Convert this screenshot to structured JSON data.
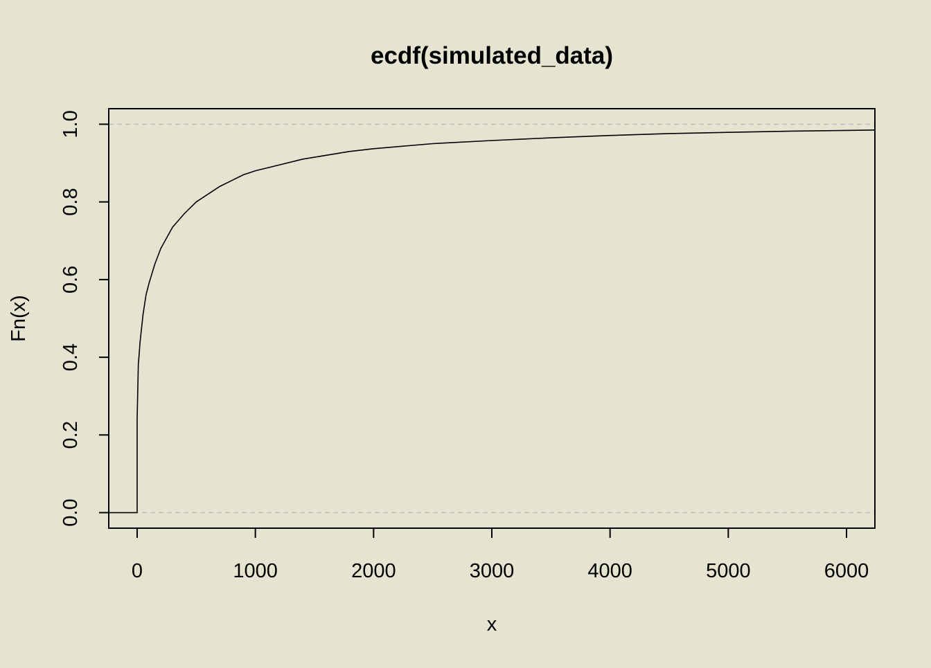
{
  "chart_data": {
    "type": "line",
    "title": "ecdf(simulated_data)",
    "xlabel": "x",
    "ylabel": "Fn(x)",
    "xlim": [
      -240,
      6240
    ],
    "ylim": [
      -0.04,
      1.04
    ],
    "x_ticks": [
      "0",
      "1000",
      "2000",
      "3000",
      "4000",
      "5000",
      "6000"
    ],
    "x_tick_values": [
      0,
      1000,
      2000,
      3000,
      4000,
      5000,
      6000
    ],
    "y_ticks": [
      "0.0",
      "0.2",
      "0.4",
      "0.6",
      "0.8",
      "1.0"
    ],
    "y_tick_values": [
      0.0,
      0.2,
      0.4,
      0.6,
      0.8,
      1.0
    ],
    "reference_lines": [
      0,
      1
    ],
    "grid": false,
    "series": [
      {
        "style": "step",
        "points": [
          [
            -240,
            0.0
          ],
          [
            0,
            0.0
          ],
          [
            0,
            0.24
          ],
          [
            10,
            0.38
          ],
          [
            25,
            0.44
          ],
          [
            50,
            0.51
          ],
          [
            75,
            0.56
          ],
          [
            100,
            0.59
          ],
          [
            150,
            0.64
          ],
          [
            200,
            0.68
          ],
          [
            300,
            0.735
          ],
          [
            400,
            0.77
          ],
          [
            500,
            0.8
          ],
          [
            600,
            0.82
          ],
          [
            700,
            0.84
          ],
          [
            800,
            0.855
          ],
          [
            900,
            0.87
          ],
          [
            1000,
            0.88
          ],
          [
            1200,
            0.895
          ],
          [
            1400,
            0.91
          ],
          [
            1600,
            0.92
          ],
          [
            1800,
            0.93
          ],
          [
            2000,
            0.937
          ],
          [
            2500,
            0.95
          ],
          [
            3000,
            0.958
          ],
          [
            3500,
            0.965
          ],
          [
            4000,
            0.971
          ],
          [
            4500,
            0.976
          ],
          [
            5000,
            0.979
          ],
          [
            5500,
            0.982
          ],
          [
            6000,
            0.984
          ],
          [
            6240,
            0.985
          ]
        ]
      }
    ],
    "colors": {
      "background": "#E5E4D1",
      "line": "#000000",
      "reference_line": "#BEBEBE",
      "frame": "#000000"
    }
  }
}
